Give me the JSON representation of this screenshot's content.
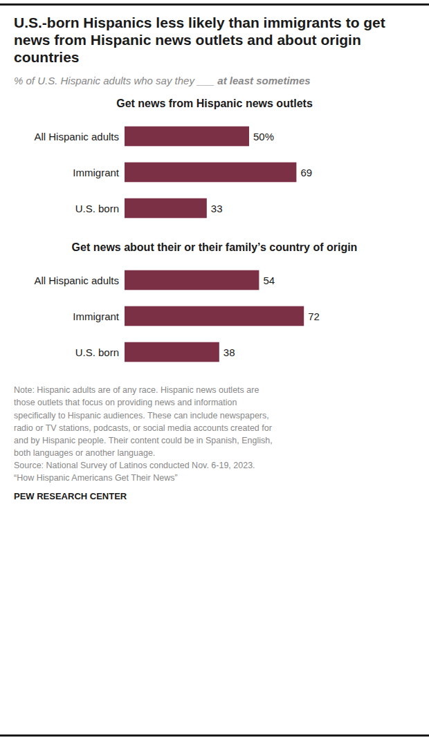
{
  "title": "U.S.-born Hispanics less likely than immigrants to get news from Hispanic news outlets and about origin countries",
  "subtitle": [
    "% of U.S. Hispanic adults who say they ___",
    "at least",
    "sometimes"
  ],
  "note": "Note: Hispanic adults are of any race. Hispanic news outlets are\nthose outlets that focus on providing news and information\nspecifically to Hispanic audiences. These can include newspapers,\nradio or TV stations, podcasts, or social media accounts created for\nand by Hispanic people. Their content could be in Spanish, English,\nboth languages or another language.\nSource: National Survey of Latinos conducted Nov. 6-19, 2023.\n“How Hispanic Americans Get Their News”",
  "source": "PEW RESEARCH CENTER",
  "chart_data": [
    {
      "type": "bar",
      "orientation": "horizontal",
      "title": "Get news from Hispanic news outlets",
      "categories": [
        "All Hispanic adults",
        "Immigrant",
        "U.S. born"
      ],
      "values": [
        50,
        69,
        33
      ],
      "value_labels": [
        "50%",
        "69",
        "33"
      ],
      "color": "#7b3045",
      "xlim": [
        0,
        100
      ],
      "data_labels": true,
      "tick_labels": false,
      "grid": false
    },
    {
      "type": "bar",
      "orientation": "horizontal",
      "title": "Get news about their or their family’s country of origin",
      "categories": [
        "All Hispanic adults",
        "Immigrant",
        "U.S. born"
      ],
      "values": [
        54,
        72,
        38
      ],
      "color": "#7b3045",
      "xlim": [
        0,
        100
      ],
      "data_labels": true,
      "tick_labels": false,
      "grid": false
    }
  ]
}
